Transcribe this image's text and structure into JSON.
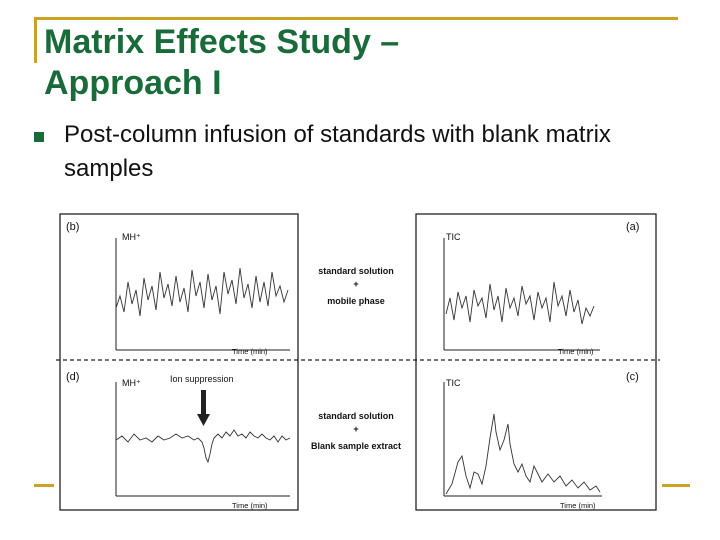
{
  "slide": {
    "title_line1": "Matrix Effects Study –",
    "title_line2": "Approach I",
    "bullet": "Post-column infusion of standards with blank matrix samples",
    "colors": {
      "title": "#1a6b3a",
      "accent": "#c9a227",
      "bullet": "#1a6b3a"
    }
  },
  "figure": {
    "panels": {
      "b": {
        "tag": "(b)",
        "signal": "MH⁺",
        "axis": "Time (min)"
      },
      "a": {
        "tag": "(a)",
        "signal": "TIC",
        "axis": "Time (min)"
      },
      "d": {
        "tag": "(d)",
        "signal": "MH⁺",
        "axis": "Time (min)",
        "annotation": "Ion suppression"
      },
      "c": {
        "tag": "(c)",
        "signal": "TIC",
        "axis": "Time (min)"
      }
    },
    "middle_top": {
      "line1": "standard solution",
      "plus": "+",
      "line2": "mobile phase"
    },
    "middle_bottom": {
      "line1": "standard solution",
      "plus": "+",
      "line2": "Blank sample extract"
    }
  }
}
